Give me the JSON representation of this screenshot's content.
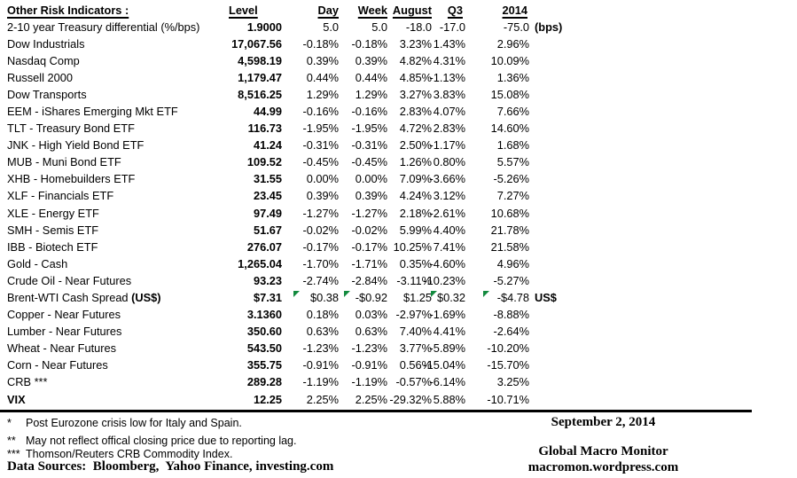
{
  "marker_color": "#128a3e",
  "table": {
    "title": "Other Risk Indicators :",
    "headers": {
      "level": "Level",
      "day": "Day",
      "week": "Week",
      "august": "August",
      "q3": "Q3",
      "yr2014": "2014"
    },
    "rows": [
      {
        "label": "2-10 year Treasury differential (%/bps)",
        "level": "1.9000",
        "day": "5.0",
        "week": "5.0",
        "august": "-18.0",
        "q3": "-17.0",
        "yr2014": "-75.0",
        "note": "(bps)"
      },
      {
        "label": "Dow Industrials",
        "level": "17,067.56",
        "day": "-0.18%",
        "week": "-0.18%",
        "august": "3.23%",
        "q3": "1.43%",
        "yr2014": "2.96%"
      },
      {
        "label": "Nasdaq Comp",
        "level": "4,598.19",
        "day": "0.39%",
        "week": "0.39%",
        "august": "4.82%",
        "q3": "4.31%",
        "yr2014": "10.09%"
      },
      {
        "label": "Russell 2000",
        "level": "1,179.47",
        "day": "0.44%",
        "week": "0.44%",
        "august": "4.85%",
        "q3": "-1.13%",
        "yr2014": "1.36%"
      },
      {
        "label": "Dow Transports",
        "level": "8,516.25",
        "day": "1.29%",
        "week": "1.29%",
        "august": "3.27%",
        "q3": "3.83%",
        "yr2014": "15.08%"
      },
      {
        "label": "EEM - iShares Emerging Mkt ETF",
        "level": "44.99",
        "day": "-0.16%",
        "week": "-0.16%",
        "august": "2.83%",
        "q3": "4.07%",
        "yr2014": "7.66%"
      },
      {
        "label": "TLT - Treasury Bond ETF",
        "level": "116.73",
        "day": "-1.95%",
        "week": "-1.95%",
        "august": "4.72%",
        "q3": "2.83%",
        "yr2014": "14.60%"
      },
      {
        "label": "JNK - High Yield Bond ETF",
        "level": "41.24",
        "day": "-0.31%",
        "week": "-0.31%",
        "august": "2.50%",
        "q3": "-1.17%",
        "yr2014": "1.68%"
      },
      {
        "label": "MUB - Muni Bond ETF",
        "level": "109.52",
        "day": "-0.45%",
        "week": "-0.45%",
        "august": "1.26%",
        "q3": "0.80%",
        "yr2014": "5.57%"
      },
      {
        "label": "XHB - Homebuilders ETF",
        "level": "31.55",
        "day": "0.00%",
        "week": "0.00%",
        "august": "7.09%",
        "q3": "-3.66%",
        "yr2014": "-5.26%"
      },
      {
        "label": "XLF - Financials ETF",
        "level": "23.45",
        "day": "0.39%",
        "week": "0.39%",
        "august": "4.24%",
        "q3": "3.12%",
        "yr2014": "7.27%"
      },
      {
        "label": "XLE - Energy ETF",
        "level": "97.49",
        "day": "-1.27%",
        "week": "-1.27%",
        "august": "2.18%",
        "q3": "-2.61%",
        "yr2014": "10.68%"
      },
      {
        "label": "SMH - Semis ETF",
        "level": "51.67",
        "day": "-0.02%",
        "week": "-0.02%",
        "august": "5.99%",
        "q3": "4.40%",
        "yr2014": "21.78%"
      },
      {
        "label": "IBB - Biotech ETF",
        "level": "276.07",
        "day": "-0.17%",
        "week": "-0.17%",
        "august": "10.25%",
        "q3": "7.41%",
        "yr2014": "21.58%"
      },
      {
        "label": "Gold - Cash",
        "level": "1,265.04",
        "day": "-1.70%",
        "week": "-1.71%",
        "august": "0.35%",
        "q3": "-4.60%",
        "yr2014": "4.96%"
      },
      {
        "label": "Crude Oil - Near Futures",
        "level": "93.23",
        "day": "-2.74%",
        "week": "-2.84%",
        "august": "-3.11%",
        "q3": "-10.23%",
        "yr2014": "-5.27%"
      },
      {
        "label": "Brent-WTI Cash Spread ",
        "label_bold": "(US$)",
        "level": "$7.31",
        "day": "$0.38",
        "week": "-$0.92",
        "august": "$1.25",
        "q3": "$0.32",
        "yr2014": "-$4.78",
        "note": "US$",
        "markers": [
          "day",
          "week",
          "q3",
          "yr2014"
        ]
      },
      {
        "label": "Copper - Near Futures",
        "level": "3.1360",
        "day": "0.18%",
        "week": "0.03%",
        "august": "-2.97%",
        "q3": "-1.69%",
        "yr2014": "-8.88%"
      },
      {
        "label": "Lumber - Near Futures",
        "level": "350.60",
        "day": "0.63%",
        "week": "0.63%",
        "august": "7.40%",
        "q3": "4.41%",
        "yr2014": "-2.64%"
      },
      {
        "label": "Wheat - Near Futures",
        "level": "543.50",
        "day": "-1.23%",
        "week": "-1.23%",
        "august": "3.77%",
        "q3": "-5.89%",
        "yr2014": "-10.20%"
      },
      {
        "label": "Corn - Near Futures",
        "level": "355.75",
        "day": "-0.91%",
        "week": "-0.91%",
        "august": "0.56%",
        "q3": "-15.04%",
        "yr2014": "-15.70%"
      },
      {
        "label": "CRB ***",
        "level": "289.28",
        "day": "-1.19%",
        "week": "-1.19%",
        "august": "-0.57%",
        "q3": "-6.14%",
        "yr2014": "3.25%"
      },
      {
        "label": "VIX",
        "bold_label": true,
        "level": "12.25",
        "day": "2.25%",
        "week": "2.25%",
        "august": "-29.32%",
        "q3": "5.88%",
        "yr2014": "-10.71%"
      }
    ]
  },
  "footnotes": [
    {
      "marker": "*",
      "text": "Post Eurozone crisis low for Italy and Spain."
    },
    {
      "marker": "**",
      "text": "May not reflect offical closing price due to reporting lag."
    },
    {
      "marker": "***",
      "text": "Thomson/Reuters CRB Commodity Index."
    }
  ],
  "data_sources": "Data Sources:  Bloomberg,  Yahoo Finance, investing.com",
  "footer_right": {
    "date": "September 2, 2014",
    "brand": "Global Macro Monitor",
    "url": "macromon.wordpress.com"
  }
}
